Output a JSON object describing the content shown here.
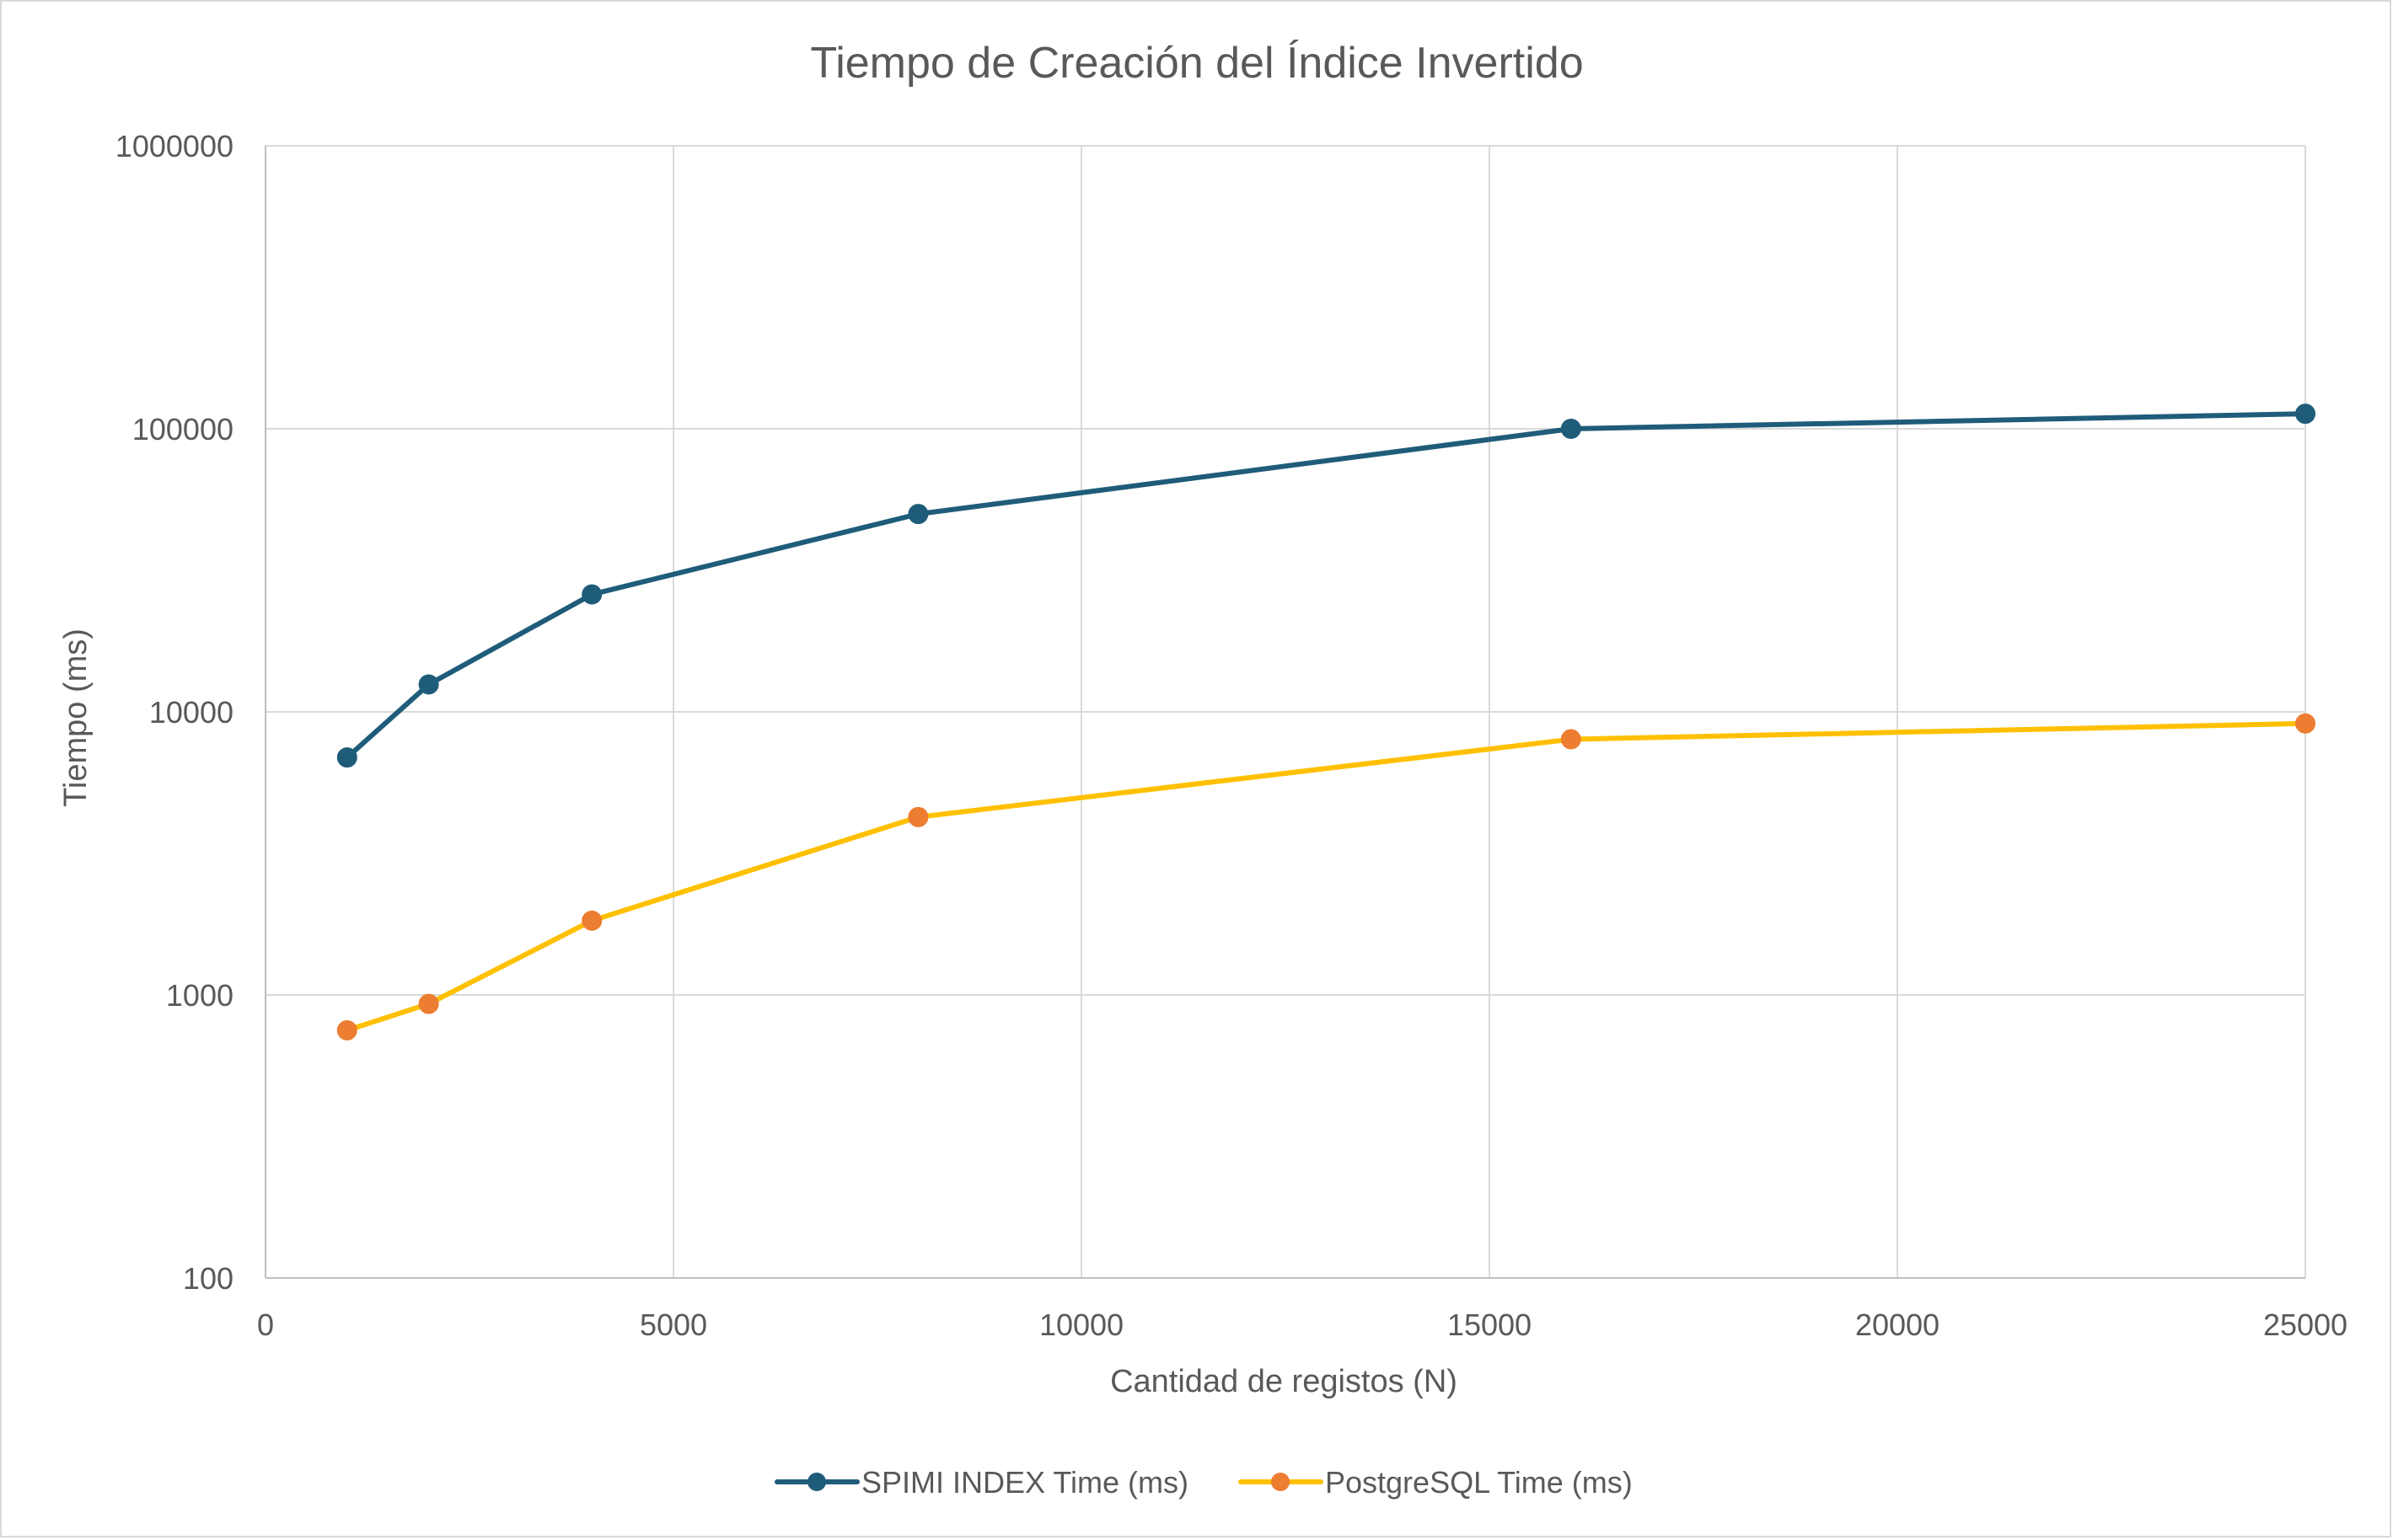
{
  "chart_data": {
    "type": "line",
    "title": "Tiempo de Creación del Índice Invertido",
    "xlabel": "Cantidad de registos (N)",
    "ylabel": "Tiempo (ms)",
    "xlim": [
      0,
      25000
    ],
    "ylim": [
      100,
      1000000
    ],
    "yscale": "log",
    "x_ticks": [
      0,
      5000,
      10000,
      15000,
      20000,
      25000
    ],
    "x_tick_labels": [
      "0",
      "5000",
      "10000",
      "15000",
      "20000",
      "25000"
    ],
    "y_ticks": [
      100,
      1000,
      10000,
      100000,
      1000000
    ],
    "y_tick_labels": [
      "100",
      "1000",
      "10000",
      "100000",
      "1000000"
    ],
    "grid": true,
    "legend_position": "bottom",
    "x": [
      1000,
      2000,
      4000,
      8000,
      16000,
      25000
    ],
    "series": [
      {
        "name": "SPIMI INDEX Time (ms)",
        "values": [
          6900,
          12500,
          26000,
          50000,
          100000,
          113000
        ],
        "line_color": "#1f5c7a",
        "marker_color": "#1f5c7a"
      },
      {
        "name": "PostgreSQL Time (ms)",
        "values": [
          750,
          930,
          1830,
          4250,
          8000,
          9100
        ],
        "line_color": "#ffc000",
        "marker_color": "#ed7d31"
      }
    ],
    "colors": {
      "grid": "#d9d9d9",
      "text": "#595959",
      "axis": "#bfbfbf"
    }
  }
}
